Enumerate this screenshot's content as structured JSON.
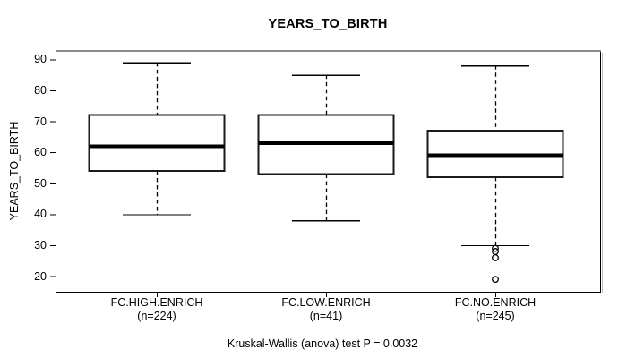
{
  "figure": {
    "background_color": "#ffffff",
    "line_color": "#000000",
    "frame_top_shadow_color": "#8a8a8a"
  },
  "chart_data": {
    "type": "boxplot",
    "title": "YEARS_TO_BIRTH",
    "ylabel": "YEARS_TO_BIRTH",
    "xlabel": "",
    "yticks": [
      90,
      80,
      70,
      60,
      50,
      40,
      30,
      20
    ],
    "ylim": [
      15,
      93
    ],
    "grid": false,
    "legend": false,
    "annotation": "Kruskal-Wallis (anova) test P = 0.0032",
    "groups": [
      {
        "label": "FC.HIGH.ENRICH",
        "sublabel": "(n=224)",
        "n": 224,
        "whisker_low": 40,
        "q1": 54,
        "median": 62,
        "q3": 72,
        "whisker_high": 89,
        "outliers": []
      },
      {
        "label": "FC.LOW.ENRICH",
        "sublabel": "(n=41)",
        "n": 41,
        "whisker_low": 38,
        "q1": 53,
        "median": 63,
        "q3": 72,
        "whisker_high": 85,
        "outliers": []
      },
      {
        "label": "FC.NO.ENRICH",
        "sublabel": "(n=245)",
        "n": 245,
        "whisker_low": 30,
        "q1": 52,
        "median": 59,
        "q3": 67,
        "whisker_high": 88,
        "outliers": [
          29,
          28,
          26,
          19
        ]
      }
    ]
  }
}
